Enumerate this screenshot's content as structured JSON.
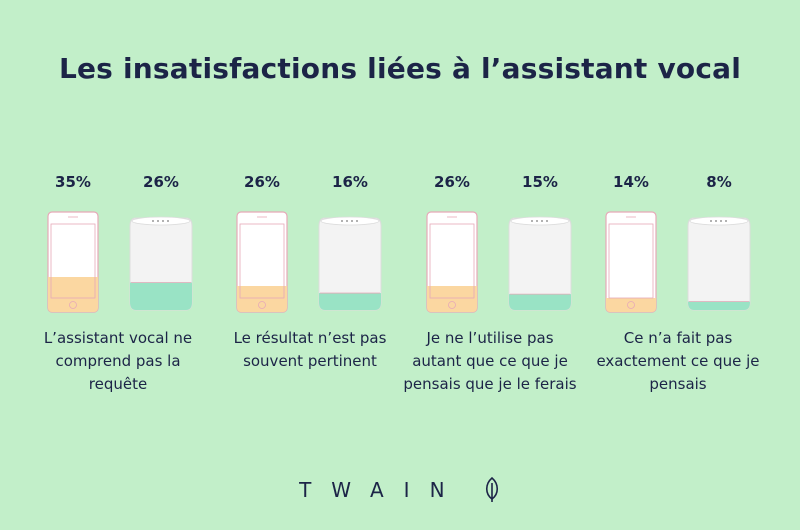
{
  "title": "Les insatisfactions liées à l’assistant vocal",
  "brand": "TWAIN",
  "colors": {
    "background": "#c2efc9",
    "text": "#1c2447",
    "phone_fill": "#fbd7a1",
    "speaker_fill": "#99e3c5"
  },
  "groups": [
    {
      "caption": "L’assistant vocal ne comprend pas la requête"
    },
    {
      "caption": "Le résultat n’est pas souvent pertinent"
    },
    {
      "caption": "Je ne l’utilise pas autant que ce que je pensais que je le ferais"
    },
    {
      "caption": "Ce n’a fait pas exactement ce que je pensais"
    }
  ],
  "chart_data": {
    "type": "bar",
    "title": "Les insatisfactions liées à l’assistant vocal",
    "categories": [
      "L’assistant vocal ne comprend pas la requête",
      "Le résultat n’est pas souvent pertinent",
      "Je ne l’utilise pas autant que ce que je pensais que je le ferais",
      "Ce n’a fait pas exactement ce que je pensais"
    ],
    "series": [
      {
        "icon": "smartphone-icon",
        "values": [
          35,
          26,
          26,
          14
        ]
      },
      {
        "icon": "smart-speaker-icon",
        "values": [
          26,
          16,
          15,
          8
        ]
      }
    ],
    "labels": [
      [
        "35%",
        "26%"
      ],
      [
        "26%",
        "16%"
      ],
      [
        "26%",
        "15%"
      ],
      [
        "14%",
        "8%"
      ]
    ],
    "unit": "%",
    "ylim": [
      0,
      100
    ]
  }
}
